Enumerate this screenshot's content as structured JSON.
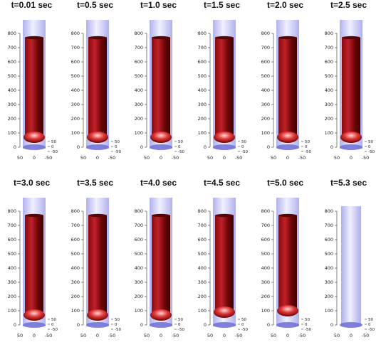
{
  "panels": [
    {
      "title": "t=0.01 sec",
      "state": "full"
    },
    {
      "title": "t=0.5 sec",
      "state": "full"
    },
    {
      "title": "t=1.0 sec",
      "state": "full"
    },
    {
      "title": "t=1.5 sec",
      "state": "full"
    },
    {
      "title": "t=2.0 sec",
      "state": "full"
    },
    {
      "title": "t=2.5 sec",
      "state": "full"
    },
    {
      "title": "t=3.0 sec",
      "state": "full"
    },
    {
      "title": "t=3.5 sec",
      "state": "full"
    },
    {
      "title": "t=4.0 sec",
      "state": "full"
    },
    {
      "title": "t=4.5 sec",
      "state": "bottom-detaching"
    },
    {
      "title": "t=5.0 sec",
      "state": "bottom-detached"
    },
    {
      "title": "t=5.3 sec",
      "state": "empty"
    }
  ],
  "axes": {
    "vertical_ticks": [
      "0",
      "100",
      "200",
      "300",
      "400",
      "500",
      "600",
      "700",
      "800"
    ],
    "horizontal_ticks": [
      "50",
      "0",
      "-50"
    ],
    "depth_ticks": [
      "50",
      "0",
      "-50"
    ]
  },
  "colors": {
    "column": "#8a0a0a",
    "column_highlight": "#c0202a",
    "tube": "#c9c9f5",
    "tube_edge": "#a9a9ec",
    "base": "#6f6fd6"
  }
}
